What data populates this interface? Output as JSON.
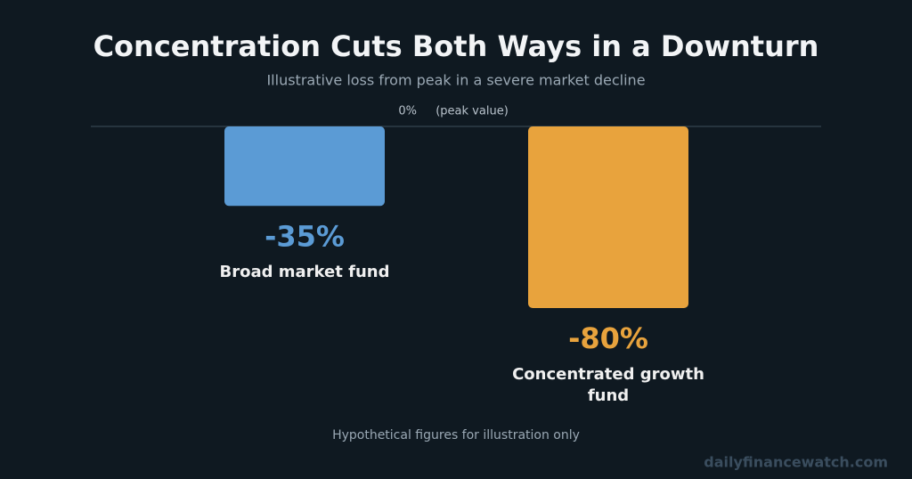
{
  "chart_data": {
    "type": "bar",
    "title": "Concentration Cuts Both Ways in a Downturn",
    "subtitle": "Illustrative loss from peak in a severe market decline",
    "categories": [
      "Broad market fund",
      "Concentrated growth fund"
    ],
    "values": [
      -35,
      -80
    ],
    "value_labels": [
      "-35%",
      "-80%"
    ],
    "colors": [
      "#5b9bd5",
      "#e8a33d"
    ],
    "ylim": [
      -100,
      0
    ],
    "yticks": [
      {
        "value": 0,
        "label": "0%"
      }
    ],
    "baseline_note": "(peak value)",
    "footnote": "Hypothetical figures for illustration only",
    "watermark": "dailyfinancewatch.com"
  }
}
